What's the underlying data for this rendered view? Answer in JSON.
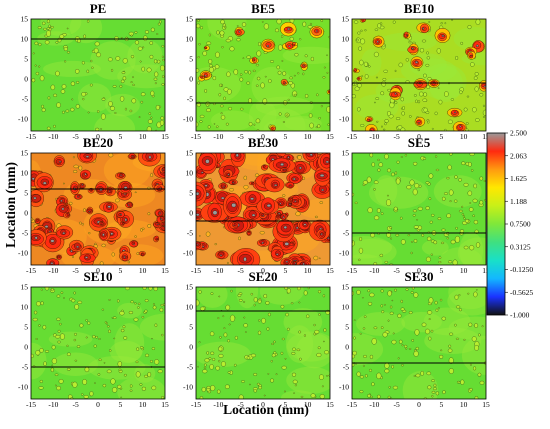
{
  "chart_data": {
    "type": "heatmap",
    "xlabel": "Location (mm)",
    "ylabel": "Location (mm)",
    "x_ticks": [
      "-15",
      "-10",
      "-5",
      "0",
      "5",
      "10",
      "15"
    ],
    "y_ticks": [
      "15",
      "10",
      "5",
      "0",
      "-5",
      "-10"
    ],
    "xlim": [
      -15,
      15
    ],
    "ylim": [
      -13,
      15
    ],
    "colorbar": {
      "labels": [
        "2.500",
        "2.063",
        "1.625",
        "1.188",
        "0.7500",
        "0.3125",
        "-0.1250",
        "-0.5625",
        "-1.000"
      ],
      "range": [
        -1.0,
        2.5
      ],
      "colors": [
        "#111111",
        "#1a33ff",
        "#13b7ff",
        "#19e0c8",
        "#3fe080",
        "#7fe83a",
        "#c8f018",
        "#ffe800",
        "#ff9a10",
        "#ff2a10",
        "#9a9a9a"
      ]
    },
    "panels": [
      {
        "title": "PE",
        "line_y": 10,
        "background": "#66dd33",
        "hot_level": 0
      },
      {
        "title": "BE5",
        "line_y": -6,
        "background": "#77e02a",
        "hot_level": 1
      },
      {
        "title": "BE10",
        "line_y": -1,
        "background": "#aadd22",
        "hot_level": 2
      },
      {
        "title": "BE20",
        "line_y": 6,
        "background": "#ee8822",
        "hot_level": 3
      },
      {
        "title": "BE30",
        "line_y": -2,
        "background": "#ee9933",
        "hot_level": 4
      },
      {
        "title": "SE5",
        "line_y": -5,
        "background": "#66dd33",
        "hot_level": 0
      },
      {
        "title": "SE10",
        "line_y": -5,
        "background": "#66dd33",
        "hot_level": 0
      },
      {
        "title": "SE20",
        "line_y": 9,
        "background": "#66dd33",
        "hot_level": 0
      },
      {
        "title": "SE30",
        "line_y": -4,
        "background": "#66dd33",
        "hot_level": 0
      }
    ]
  }
}
